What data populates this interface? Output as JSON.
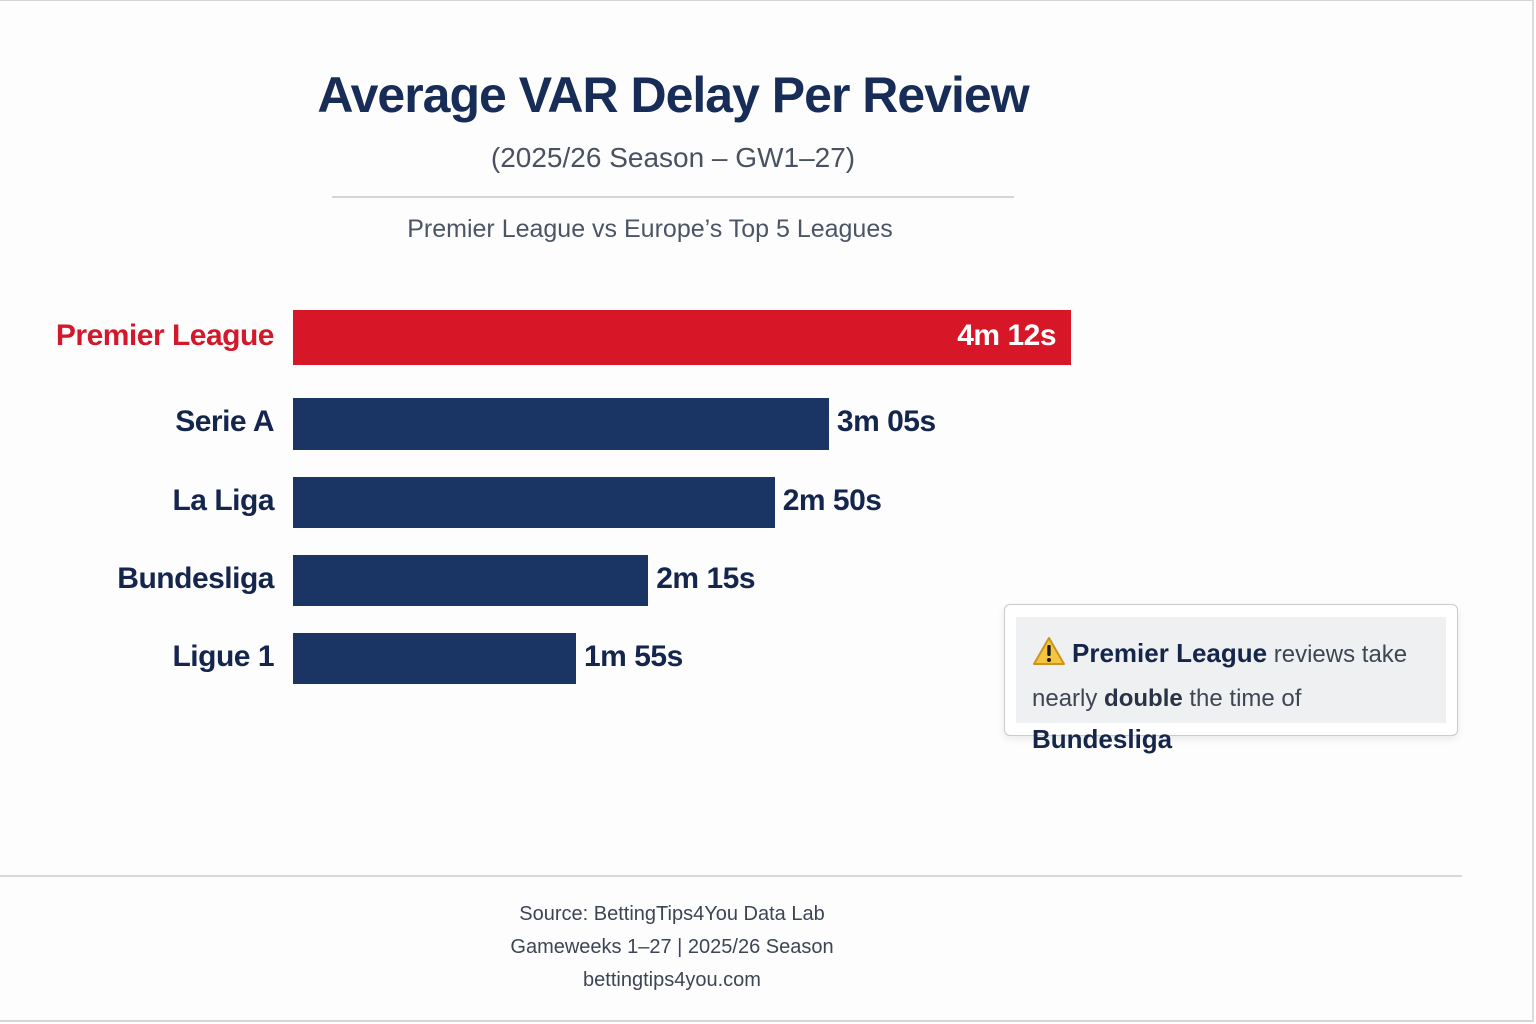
{
  "header": {
    "title": "Average VAR Delay Per Review",
    "subtitle": "(2025/26 Season – GW1–27)",
    "tagline": "Premier League vs Europe’s Top 5 Leagues"
  },
  "colors": {
    "highlight": "#d71628",
    "bar": "#1a3464",
    "title": "#172d57"
  },
  "chart_data": {
    "type": "bar",
    "orientation": "horizontal",
    "title": "Average VAR Delay Per Review",
    "subtitle": "(2025/26 Season – GW1–27)",
    "xlabel": "",
    "ylabel": "",
    "unit": "seconds",
    "categories": [
      "Premier League",
      "Serie A",
      "La Liga",
      "Bundesliga",
      "Ligue 1"
    ],
    "values": [
      252,
      185,
      170,
      135,
      115
    ],
    "value_labels": [
      "4m 12s",
      "3m 05s",
      "2m 50s",
      "2m 15s",
      "1m 55s"
    ],
    "highlighted": "Premier League",
    "grid": false,
    "legend": "none"
  },
  "callout": {
    "icon": "warning-icon",
    "bold_1": "Premier League",
    "text_1": " reviews take",
    "text_2": "nearly ",
    "semibold_2": "double",
    "text_3": " the time of ",
    "bold_2": "Bundesliga"
  },
  "footer": {
    "source": "Source: BettingTips4You Data Lab",
    "period": "Gameweeks 1–27 | 2025/26 Season",
    "website": "bettingtips4you.com"
  }
}
